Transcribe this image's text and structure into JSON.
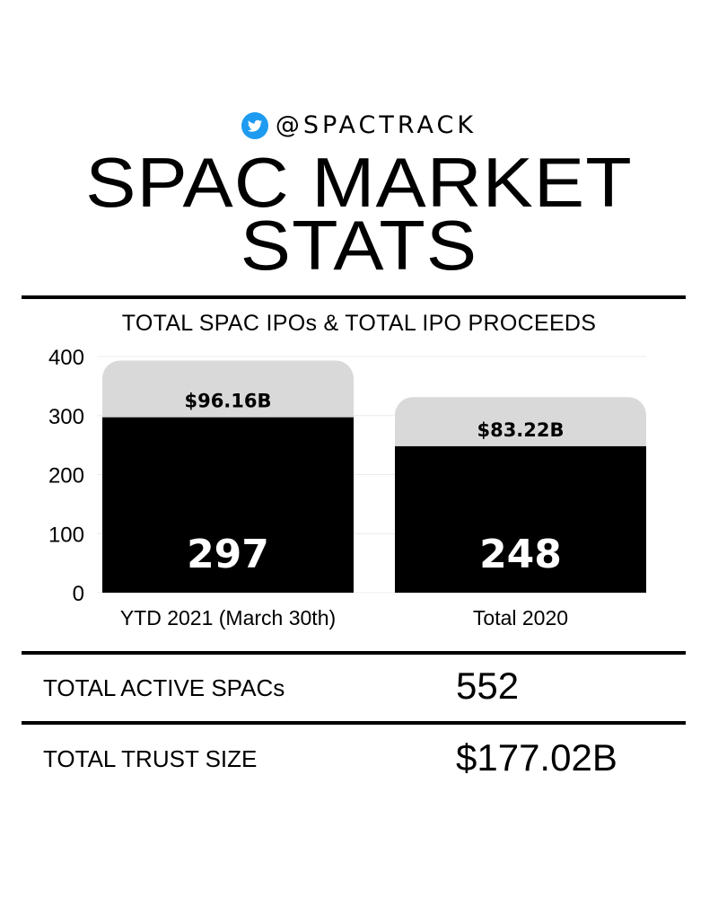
{
  "header": {
    "handle": "@SPACTRACK",
    "title_line1": "SPAC MARKET",
    "title_line2": "STATS"
  },
  "chart_data": {
    "type": "bar",
    "title": "TOTAL SPAC IPOs & TOTAL IPO PROCEEDS",
    "categories": [
      "YTD 2021 (March 30th)",
      "Total 2020"
    ],
    "series": [
      {
        "values": [
          297,
          248
        ],
        "color": "#000000",
        "labels": [
          "297",
          "248"
        ]
      },
      {
        "values": [
          96.16,
          83.22
        ],
        "color": "#d9d9d9",
        "labels": [
          "$96.16B",
          "$83.22B"
        ]
      }
    ],
    "ylim": [
      0,
      400
    ],
    "yticks": [
      "0",
      "100",
      "200",
      "300",
      "400"
    ],
    "grid": true
  },
  "stats": [
    {
      "label": "TOTAL ACTIVE SPACs",
      "value": "552"
    },
    {
      "label": "TOTAL TRUST SIZE",
      "value": "$177.02B"
    }
  ],
  "colors": {
    "twitter": "#1d9bf0",
    "ink": "#000000",
    "proceeds": "#d9d9d9"
  }
}
